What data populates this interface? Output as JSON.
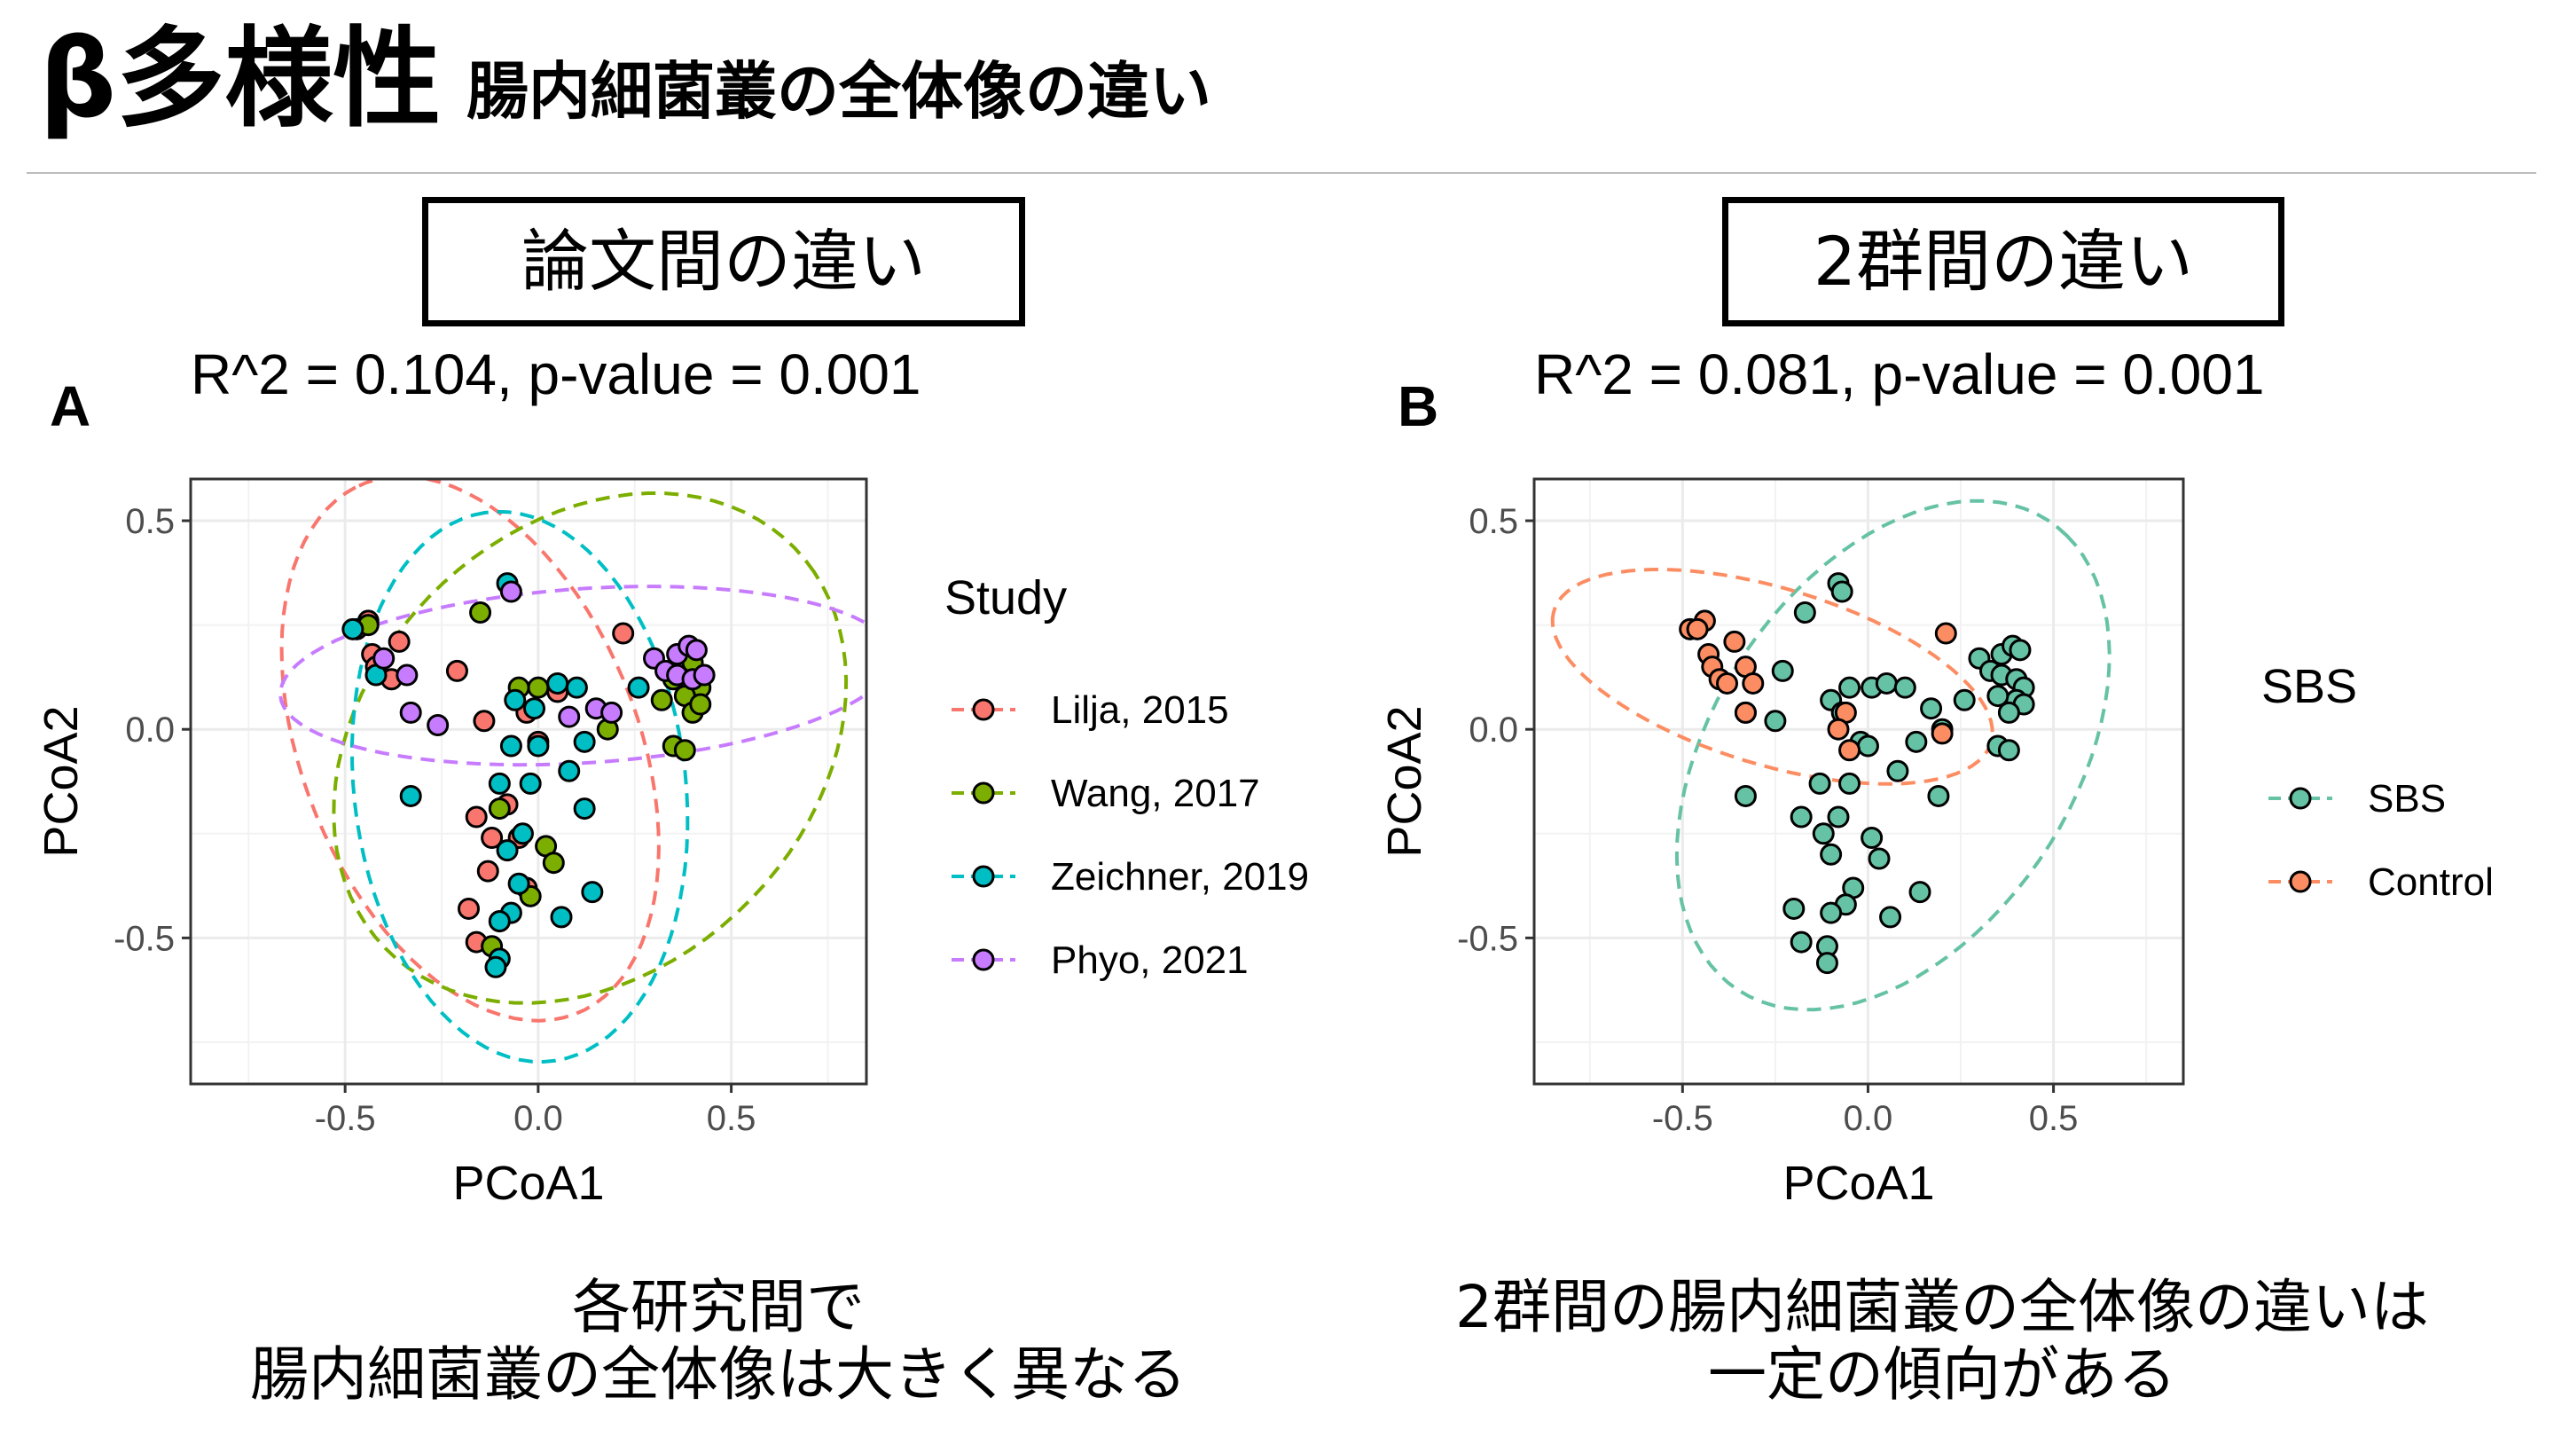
{
  "slide": {
    "title_main": "β多様性",
    "title_sub": "腸内細菌叢の全体像の違い",
    "left_box_label": "論文間の違い",
    "right_box_label": "2群間の違い",
    "left_caption_line1": "各研究間で",
    "left_caption_line2": "腸内細菌叢の全体像は大きく異なる",
    "right_caption_line1": "2群間の腸内細菌叢の全体像の違いは",
    "right_caption_line2": "一定の傾向がある"
  },
  "colors": {
    "lilja": "#F8766D",
    "wang": "#7CAE00",
    "zeichner": "#00BFC4",
    "phyo": "#C77CFF",
    "sbs": "#66C2A5",
    "control": "#FC8D62"
  },
  "chart_data": [
    {
      "type": "scatter",
      "panel": "A",
      "title": "R^2 = 0.104, p-value = 0.001",
      "xlabel": "PCoA1",
      "ylabel": "PCoA2",
      "xlim": [
        -0.9,
        0.85
      ],
      "ylim": [
        -0.85,
        0.6
      ],
      "xticks": [
        -0.5,
        0.0,
        0.5
      ],
      "xtick_labels": [
        "-0.5",
        "0.0",
        "0.5"
      ],
      "yticks": [
        -0.5,
        0.0,
        0.5
      ],
      "ytick_labels": [
        "-0.5",
        "0.0",
        "0.5"
      ],
      "grid": true,
      "legend_title": "Study",
      "legend_position": "right",
      "series": [
        {
          "name": "Lilja, 2015",
          "color": "#F8766D",
          "points": [
            [
              -0.47,
              0.24
            ],
            [
              -0.44,
              0.26
            ],
            [
              -0.43,
              0.18
            ],
            [
              -0.42,
              0.15
            ],
            [
              -0.38,
              0.12
            ],
            [
              -0.36,
              0.21
            ],
            [
              -0.21,
              0.14
            ],
            [
              -0.14,
              0.02
            ],
            [
              0.05,
              0.09
            ],
            [
              0.22,
              0.23
            ],
            [
              -0.03,
              0.04
            ],
            [
              -0.16,
              -0.21
            ],
            [
              -0.12,
              -0.26
            ],
            [
              -0.05,
              -0.26
            ],
            [
              -0.03,
              -0.38
            ],
            [
              -0.18,
              -0.43
            ],
            [
              -0.16,
              -0.51
            ],
            [
              -0.08,
              -0.18
            ],
            [
              -0.13,
              -0.34
            ],
            [
              0.0,
              -0.03
            ]
          ]
        },
        {
          "name": "Wang, 2017",
          "color": "#7CAE00",
          "points": [
            [
              -0.44,
              0.25
            ],
            [
              -0.15,
              0.28
            ],
            [
              0.0,
              0.1
            ],
            [
              -0.05,
              0.1
            ],
            [
              0.32,
              0.07
            ],
            [
              0.35,
              0.12
            ],
            [
              0.4,
              0.16
            ],
            [
              0.42,
              0.1
            ],
            [
              0.38,
              0.08
            ],
            [
              0.4,
              0.04
            ],
            [
              0.35,
              -0.04
            ],
            [
              0.38,
              -0.05
            ],
            [
              0.42,
              0.06
            ],
            [
              -0.1,
              -0.19
            ],
            [
              0.02,
              -0.28
            ],
            [
              0.04,
              -0.32
            ],
            [
              -0.02,
              -0.4
            ],
            [
              -0.12,
              -0.52
            ],
            [
              -0.1,
              -0.46
            ],
            [
              0.18,
              0.0
            ]
          ]
        },
        {
          "name": "Zeichner, 2019",
          "color": "#00BFC4",
          "points": [
            [
              -0.48,
              0.24
            ],
            [
              -0.42,
              0.13
            ],
            [
              -0.08,
              0.35
            ],
            [
              -0.06,
              0.07
            ],
            [
              -0.01,
              0.05
            ],
            [
              0.05,
              0.11
            ],
            [
              0.1,
              0.1
            ],
            [
              0.26,
              0.1
            ],
            [
              -0.33,
              -0.16
            ],
            [
              -0.1,
              -0.13
            ],
            [
              -0.02,
              -0.13
            ],
            [
              0.08,
              -0.1
            ],
            [
              -0.08,
              -0.29
            ],
            [
              0.12,
              -0.19
            ],
            [
              -0.05,
              -0.37
            ],
            [
              -0.07,
              -0.44
            ],
            [
              0.06,
              -0.45
            ],
            [
              0.14,
              -0.39
            ],
            [
              -0.1,
              -0.46
            ],
            [
              -0.1,
              -0.55
            ],
            [
              0.0,
              -0.04
            ],
            [
              -0.07,
              -0.04
            ],
            [
              0.12,
              -0.03
            ],
            [
              -0.04,
              -0.25
            ],
            [
              -0.11,
              -0.57
            ]
          ]
        },
        {
          "name": "Phyo, 2021",
          "color": "#C77CFF",
          "points": [
            [
              -0.4,
              0.17
            ],
            [
              -0.34,
              0.13
            ],
            [
              -0.33,
              0.04
            ],
            [
              -0.26,
              0.01
            ],
            [
              -0.07,
              0.33
            ],
            [
              0.08,
              0.03
            ],
            [
              0.15,
              0.05
            ],
            [
              0.19,
              0.04
            ],
            [
              0.3,
              0.17
            ],
            [
              0.33,
              0.14
            ],
            [
              0.36,
              0.18
            ],
            [
              0.39,
              0.2
            ],
            [
              0.41,
              0.19
            ],
            [
              0.36,
              0.13
            ],
            [
              0.4,
              0.12
            ],
            [
              0.43,
              0.13
            ]
          ]
        }
      ],
      "ellipses": [
        "Lilja, 2015",
        "Wang, 2017",
        "Zeichner, 2019",
        "Phyo, 2021"
      ]
    },
    {
      "type": "scatter",
      "panel": "B",
      "title": "R^2 = 0.081, p-value = 0.001",
      "xlabel": "PCoA1",
      "ylabel": "PCoA2",
      "xlim": [
        -0.9,
        0.85
      ],
      "ylim": [
        -0.85,
        0.6
      ],
      "xticks": [
        -0.5,
        0.0,
        0.5
      ],
      "xtick_labels": [
        "-0.5",
        "0.0",
        "0.5"
      ],
      "yticks": [
        -0.5,
        0.0,
        0.5
      ],
      "ytick_labels": [
        "-0.5",
        "0.0",
        "0.5"
      ],
      "grid": true,
      "legend_title": "SBS",
      "legend_position": "right",
      "series": [
        {
          "name": "SBS",
          "color": "#66C2A5",
          "points": [
            [
              -0.08,
              0.35
            ],
            [
              -0.07,
              0.33
            ],
            [
              -0.1,
              0.07
            ],
            [
              -0.05,
              0.1
            ],
            [
              0.01,
              0.1
            ],
            [
              0.05,
              0.11
            ],
            [
              0.1,
              0.1
            ],
            [
              0.17,
              0.05
            ],
            [
              0.26,
              0.07
            ],
            [
              -0.07,
              0.04
            ],
            [
              -0.25,
              0.02
            ],
            [
              -0.33,
              0.04
            ],
            [
              -0.23,
              0.14
            ],
            [
              -0.17,
              0.28
            ],
            [
              0.2,
              0.0
            ],
            [
              0.3,
              0.17
            ],
            [
              0.33,
              0.14
            ],
            [
              0.36,
              0.18
            ],
            [
              0.39,
              0.2
            ],
            [
              0.41,
              0.19
            ],
            [
              0.36,
              0.13
            ],
            [
              0.4,
              0.12
            ],
            [
              0.42,
              0.1
            ],
            [
              0.4,
              0.07
            ],
            [
              0.35,
              0.08
            ],
            [
              0.42,
              0.06
            ],
            [
              0.38,
              0.04
            ],
            [
              0.35,
              -0.04
            ],
            [
              0.38,
              -0.05
            ],
            [
              0.13,
              -0.03
            ],
            [
              -0.02,
              -0.03
            ],
            [
              -0.33,
              -0.16
            ],
            [
              -0.13,
              -0.13
            ],
            [
              -0.05,
              -0.13
            ],
            [
              0.08,
              -0.1
            ],
            [
              0.19,
              -0.16
            ],
            [
              -0.18,
              -0.21
            ],
            [
              -0.08,
              -0.21
            ],
            [
              0.01,
              -0.26
            ],
            [
              -0.12,
              -0.25
            ],
            [
              -0.1,
              -0.3
            ],
            [
              0.03,
              -0.31
            ],
            [
              -0.04,
              -0.38
            ],
            [
              -0.06,
              -0.42
            ],
            [
              -0.1,
              -0.44
            ],
            [
              0.06,
              -0.45
            ],
            [
              0.14,
              -0.39
            ],
            [
              -0.2,
              -0.43
            ],
            [
              -0.18,
              -0.51
            ],
            [
              -0.11,
              -0.52
            ],
            [
              -0.11,
              -0.56
            ],
            [
              0.0,
              -0.04
            ]
          ]
        },
        {
          "name": "Control",
          "color": "#FC8D62",
          "points": [
            [
              -0.48,
              0.24
            ],
            [
              -0.44,
              0.26
            ],
            [
              -0.46,
              0.24
            ],
            [
              -0.43,
              0.18
            ],
            [
              -0.42,
              0.15
            ],
            [
              -0.4,
              0.12
            ],
            [
              -0.38,
              0.11
            ],
            [
              -0.36,
              0.21
            ],
            [
              -0.33,
              0.15
            ],
            [
              -0.31,
              0.11
            ],
            [
              -0.33,
              0.04
            ],
            [
              0.21,
              0.23
            ],
            [
              -0.06,
              0.04
            ],
            [
              -0.08,
              0.0
            ],
            [
              0.2,
              -0.01
            ],
            [
              -0.05,
              -0.05
            ]
          ]
        }
      ],
      "ellipses": [
        "SBS",
        "Control"
      ]
    }
  ]
}
